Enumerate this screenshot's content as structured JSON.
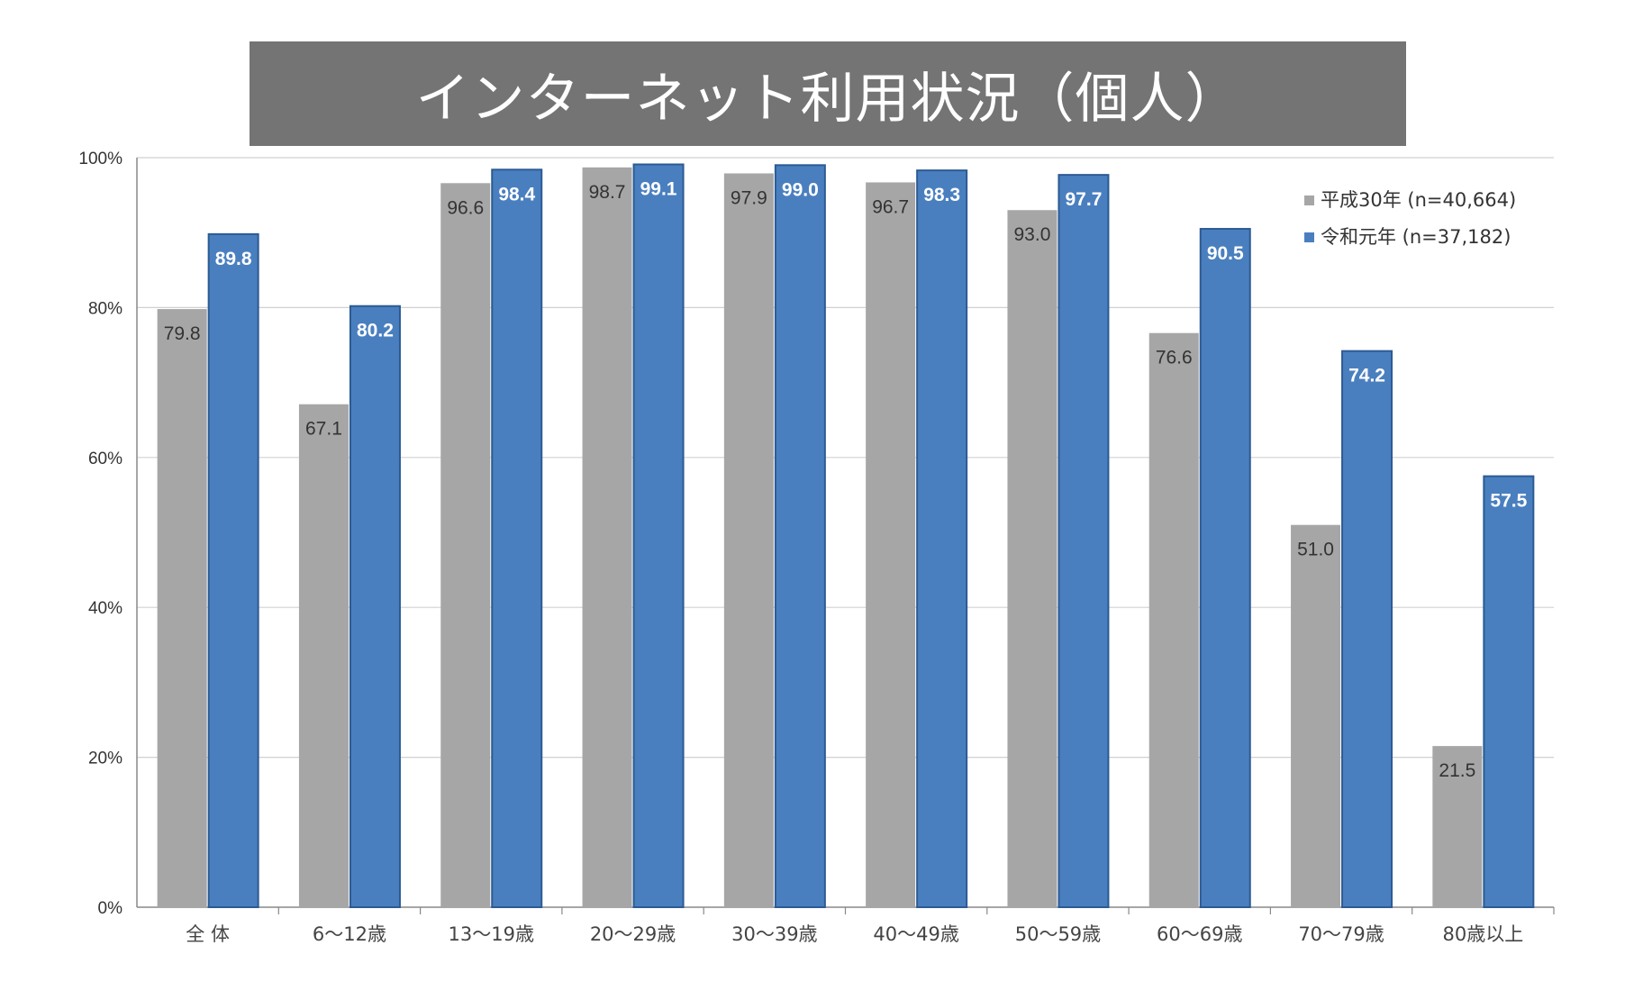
{
  "chart_data": {
    "type": "bar",
    "title": "インターネット利用状況（個人）",
    "categories": [
      "全 体",
      "6～12歳",
      "13～19歳",
      "20～29歳",
      "30～39歳",
      "40～49歳",
      "50～59歳",
      "60～69歳",
      "70～79歳",
      "80歳以上"
    ],
    "series": [
      {
        "name": "平成30年 (n=40,664)",
        "color": "#a6a6a6",
        "values": [
          79.8,
          67.1,
          96.6,
          98.7,
          97.9,
          96.7,
          93.0,
          76.6,
          51.0,
          21.5
        ],
        "labels": [
          "79.8",
          "67.1",
          "96.6",
          "98.7",
          "97.9",
          "96.7",
          "93.0",
          "76.6",
          "51.0",
          "21.5"
        ]
      },
      {
        "name": "令和元年 (n=37,182)",
        "color": "#4a7fbf",
        "values": [
          89.8,
          80.2,
          98.4,
          99.1,
          99.0,
          98.3,
          97.7,
          90.5,
          74.2,
          57.5
        ],
        "labels": [
          "89.8",
          "80.2",
          "98.4",
          "99.1",
          "99.0",
          "98.3",
          "97.7",
          "90.5",
          "74.2",
          "57.5"
        ]
      }
    ],
    "ylim": [
      0,
      100
    ],
    "yticks": [
      "0%",
      "20%",
      "40%",
      "60%",
      "80%",
      "100%"
    ],
    "grid": true,
    "legend_position": "top-right"
  }
}
